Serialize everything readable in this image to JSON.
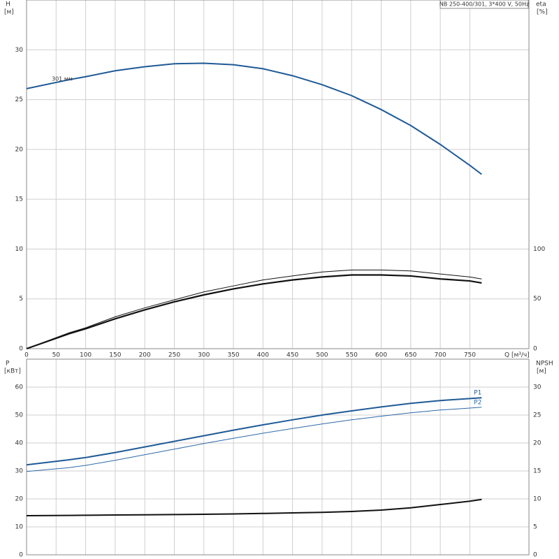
{
  "chart_data": [
    {
      "type": "line",
      "title": "NB 250-400/301, 3*400 V, 50Hz",
      "xlabel": "Q [м³/ч]",
      "ylabel": "H",
      "ylabel_unit": "[м]",
      "y2label": "eta",
      "y2label_unit": "[%]",
      "xlim": [
        0,
        850
      ],
      "xticks": [
        0,
        50,
        100,
        150,
        200,
        250,
        300,
        350,
        400,
        450,
        500,
        550,
        600,
        650,
        700,
        750
      ],
      "ylim": [
        0,
        35
      ],
      "yticks": [
        0,
        5,
        10,
        15,
        20,
        25,
        30
      ],
      "y2lim": [
        0,
        350
      ],
      "y2ticks": [
        0,
        50,
        100
      ],
      "grid": true,
      "x": [
        0,
        72,
        100,
        150,
        200,
        250,
        300,
        350,
        400,
        450,
        500,
        550,
        600,
        650,
        700,
        750,
        770
      ],
      "series": [
        {
          "name": "301 мм",
          "label_at": "start",
          "color": "#1f5a96",
          "width": 2,
          "values": [
            26.1,
            27.0,
            27.3,
            27.9,
            28.3,
            28.6,
            28.65,
            28.5,
            28.1,
            27.4,
            26.5,
            25.4,
            24.0,
            22.4,
            20.5,
            18.4,
            17.5
          ]
        },
        {
          "color": "#111111",
          "width": 1,
          "axis": "y2",
          "values": [
            0,
            16,
            21,
            32,
            41,
            49,
            57,
            63,
            69,
            73,
            77,
            79,
            79,
            78,
            75,
            72,
            70
          ]
        },
        {
          "color": "#111111",
          "width": 2.2,
          "axis": "y2",
          "values": [
            0,
            15,
            20,
            30,
            39,
            47,
            54,
            60,
            65,
            69,
            72,
            74,
            74,
            73,
            70,
            68,
            66
          ]
        }
      ]
    },
    {
      "type": "line",
      "ylabel": "P",
      "ylabel_unit": "[кВт]",
      "y2label": "NPSH",
      "y2label_unit": "[м]",
      "ylim": [
        0,
        70
      ],
      "yticks": [
        0,
        10,
        20,
        30,
        40,
        50,
        60
      ],
      "y2lim": [
        0,
        35
      ],
      "y2ticks": [
        0,
        5,
        10,
        15,
        20,
        25,
        30
      ],
      "grid": true,
      "x": [
        0,
        72,
        100,
        150,
        200,
        250,
        300,
        350,
        400,
        450,
        500,
        550,
        600,
        650,
        700,
        750,
        770
      ],
      "series": [
        {
          "name": "P1",
          "label_at": "end",
          "color": "#1f5a96",
          "width": 2,
          "values": [
            32.2,
            34.0,
            34.8,
            36.6,
            38.6,
            40.6,
            42.6,
            44.6,
            46.5,
            48.3,
            50.0,
            51.5,
            52.9,
            54.2,
            55.2,
            55.9,
            56.2
          ]
        },
        {
          "name": "P2",
          "label_at": "end",
          "color": "#2f69a8",
          "width": 1,
          "values": [
            29.8,
            31.2,
            32.0,
            33.8,
            35.8,
            37.8,
            39.8,
            41.7,
            43.5,
            45.2,
            46.8,
            48.3,
            49.6,
            50.8,
            51.8,
            52.5,
            52.8
          ]
        },
        {
          "color": "#111111",
          "width": 2,
          "axis": "y2",
          "values": [
            7.0,
            7.05,
            7.08,
            7.12,
            7.15,
            7.2,
            7.25,
            7.32,
            7.4,
            7.5,
            7.6,
            7.75,
            8.0,
            8.4,
            9.0,
            9.6,
            9.9
          ]
        }
      ]
    }
  ]
}
